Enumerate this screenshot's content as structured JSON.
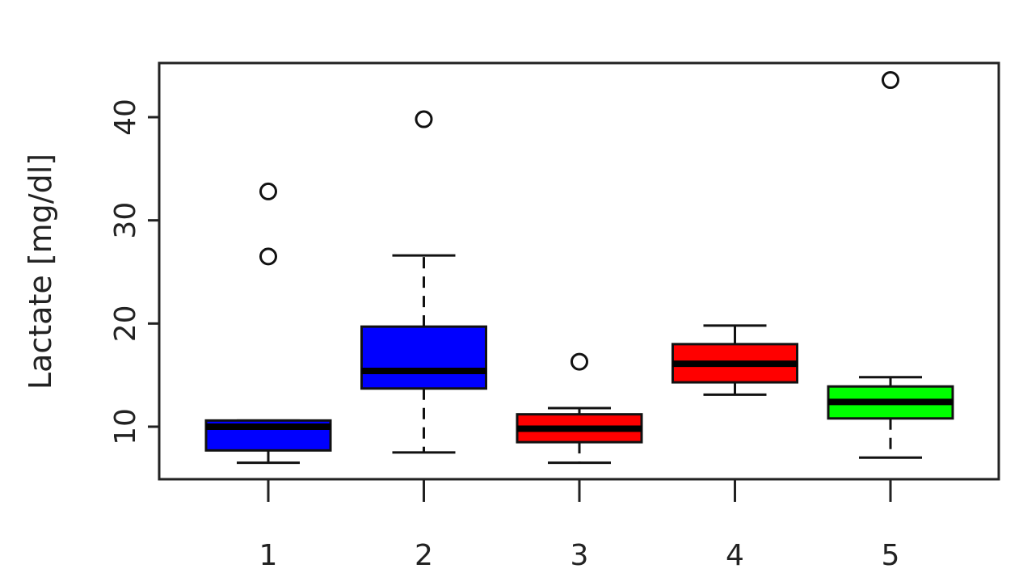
{
  "chart_data": {
    "type": "boxplot",
    "title": "",
    "xlabel": "",
    "ylabel": "Lactate [mg/dl]",
    "ylim": [
      5,
      45
    ],
    "yticks": [
      10,
      20,
      30,
      40
    ],
    "grid": false,
    "categories": [
      "1",
      "2",
      "3",
      "4",
      "5"
    ],
    "boxes": [
      {
        "category": "1",
        "color": "#0000ff",
        "whisker_low": 6.5,
        "q1": 7.7,
        "median": 10.0,
        "q3": 10.6,
        "whisker_high": 10.6,
        "outliers": [
          26.5,
          32.8
        ],
        "whisker_style": "dashed"
      },
      {
        "category": "2",
        "color": "#0000ff",
        "whisker_low": 7.5,
        "q1": 13.7,
        "median": 15.4,
        "q3": 19.7,
        "whisker_high": 26.6,
        "outliers": [
          39.8
        ],
        "whisker_style": "dashed"
      },
      {
        "category": "3",
        "color": "#ff0000",
        "whisker_low": 6.5,
        "q1": 8.5,
        "median": 9.8,
        "q3": 11.2,
        "whisker_high": 11.8,
        "outliers": [
          16.3
        ],
        "whisker_style": "dashed"
      },
      {
        "category": "4",
        "color": "#ff0000",
        "whisker_low": 13.1,
        "q1": 14.3,
        "median": 16.1,
        "q3": 18.0,
        "whisker_high": 19.8,
        "outliers": [],
        "whisker_style": "solid"
      },
      {
        "category": "5",
        "color": "#00ff00",
        "whisker_low": 7.0,
        "q1": 10.8,
        "median": 12.4,
        "q3": 13.9,
        "whisker_high": 14.8,
        "outliers": [
          43.6
        ],
        "whisker_style": "dashed"
      }
    ]
  }
}
